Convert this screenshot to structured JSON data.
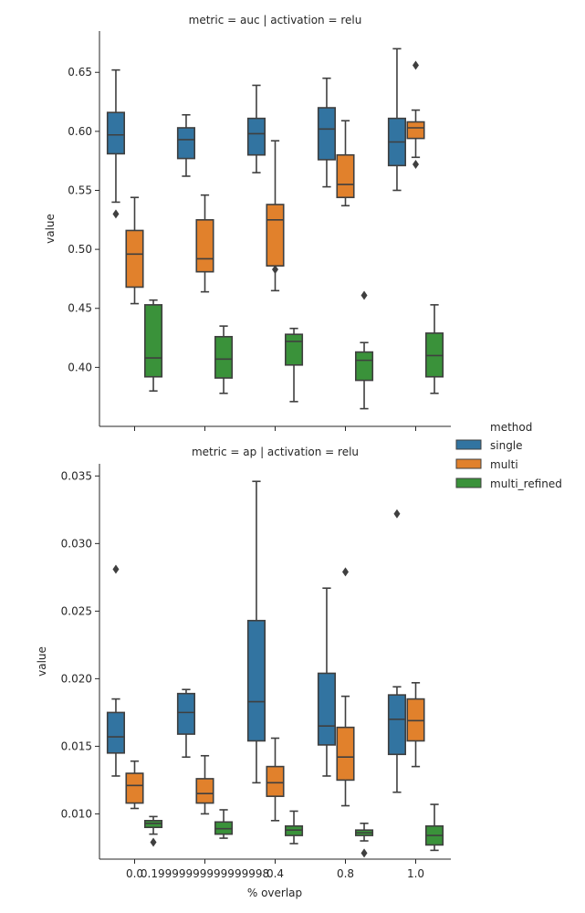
{
  "legend": {
    "title": "method",
    "entries": [
      {
        "name": "single",
        "color": "#3274a1"
      },
      {
        "name": "multi",
        "color": "#e1812c"
      },
      {
        "name": "multi_refined",
        "color": "#3a923a"
      }
    ]
  },
  "x_axis_label": "% overlap",
  "chart_data": [
    {
      "type": "box",
      "title": "metric = auc | activation = relu",
      "xlabel": "",
      "ylabel": "value",
      "ylim": [
        0.35,
        0.685
      ],
      "yticks": [
        0.4,
        0.45,
        0.5,
        0.55,
        0.6,
        0.65
      ],
      "ytick_labels": [
        "0.40",
        "0.45",
        "0.50",
        "0.55",
        "0.60",
        "0.65"
      ],
      "categories": [
        "0.0",
        "0.19999999999999998",
        "0.4",
        "0.8",
        "1.0"
      ],
      "show_xtick_labels": false,
      "series": [
        {
          "name": "single",
          "color": "#3274a1",
          "boxes": [
            {
              "whislo": 0.54,
              "q1": 0.581,
              "med": 0.597,
              "q3": 0.616,
              "whishi": 0.652,
              "fliers": [
                0.53
              ]
            },
            {
              "whislo": 0.562,
              "q1": 0.577,
              "med": 0.593,
              "q3": 0.603,
              "whishi": 0.614,
              "fliers": []
            },
            {
              "whislo": 0.565,
              "q1": 0.58,
              "med": 0.598,
              "q3": 0.611,
              "whishi": 0.639,
              "fliers": []
            },
            {
              "whislo": 0.553,
              "q1": 0.576,
              "med": 0.602,
              "q3": 0.62,
              "whishi": 0.645,
              "fliers": []
            },
            {
              "whislo": 0.55,
              "q1": 0.571,
              "med": 0.591,
              "q3": 0.611,
              "whishi": 0.67,
              "fliers": []
            }
          ]
        },
        {
          "name": "multi",
          "color": "#e1812c",
          "boxes": [
            {
              "whislo": 0.454,
              "q1": 0.468,
              "med": 0.496,
              "q3": 0.516,
              "whishi": 0.544,
              "fliers": []
            },
            {
              "whislo": 0.464,
              "q1": 0.481,
              "med": 0.492,
              "q3": 0.525,
              "whishi": 0.546,
              "fliers": []
            },
            {
              "whislo": 0.465,
              "q1": 0.486,
              "med": 0.525,
              "q3": 0.538,
              "whishi": 0.592,
              "fliers": [
                0.483
              ]
            },
            {
              "whislo": 0.537,
              "q1": 0.544,
              "med": 0.555,
              "q3": 0.58,
              "whishi": 0.609,
              "fliers": []
            },
            {
              "whislo": 0.578,
              "q1": 0.594,
              "med": 0.603,
              "q3": 0.608,
              "whishi": 0.618,
              "fliers": [
                0.656,
                0.572
              ]
            }
          ]
        },
        {
          "name": "multi_refined",
          "color": "#3a923a",
          "boxes": [
            {
              "whislo": 0.38,
              "q1": 0.392,
              "med": 0.408,
              "q3": 0.453,
              "whishi": 0.457,
              "fliers": []
            },
            {
              "whislo": 0.378,
              "q1": 0.391,
              "med": 0.407,
              "q3": 0.426,
              "whishi": 0.435,
              "fliers": []
            },
            {
              "whislo": 0.371,
              "q1": 0.402,
              "med": 0.422,
              "q3": 0.428,
              "whishi": 0.433,
              "fliers": []
            },
            {
              "whislo": 0.365,
              "q1": 0.389,
              "med": 0.406,
              "q3": 0.413,
              "whishi": 0.421,
              "fliers": [
                0.461
              ]
            },
            {
              "whislo": 0.378,
              "q1": 0.392,
              "med": 0.41,
              "q3": 0.429,
              "whishi": 0.453,
              "fliers": []
            }
          ]
        }
      ]
    },
    {
      "type": "box",
      "title": "metric = ap | activation = relu",
      "xlabel": "% overlap",
      "ylabel": "value",
      "ylim": [
        0.00665,
        0.0359
      ],
      "yticks": [
        0.01,
        0.015,
        0.02,
        0.025,
        0.03,
        0.035
      ],
      "ytick_labels": [
        "0.010",
        "0.015",
        "0.020",
        "0.025",
        "0.030",
        "0.035"
      ],
      "categories": [
        "0.0",
        "0.19999999999999998",
        "0.4",
        "0.8",
        "1.0"
      ],
      "show_xtick_labels": true,
      "series": [
        {
          "name": "single",
          "color": "#3274a1",
          "boxes": [
            {
              "whislo": 0.0128,
              "q1": 0.0145,
              "med": 0.0157,
              "q3": 0.0175,
              "whishi": 0.0185,
              "fliers": [
                0.0281
              ]
            },
            {
              "whislo": 0.0142,
              "q1": 0.0159,
              "med": 0.0175,
              "q3": 0.0189,
              "whishi": 0.0192,
              "fliers": []
            },
            {
              "whislo": 0.0123,
              "q1": 0.0154,
              "med": 0.0183,
              "q3": 0.0243,
              "whishi": 0.0346,
              "fliers": []
            },
            {
              "whislo": 0.0128,
              "q1": 0.0151,
              "med": 0.0165,
              "q3": 0.0204,
              "whishi": 0.0267,
              "fliers": []
            },
            {
              "whislo": 0.0116,
              "q1": 0.0144,
              "med": 0.017,
              "q3": 0.0188,
              "whishi": 0.0194,
              "fliers": [
                0.0322
              ]
            }
          ]
        },
        {
          "name": "multi",
          "color": "#e1812c",
          "boxes": [
            {
              "whislo": 0.0104,
              "q1": 0.0108,
              "med": 0.0121,
              "q3": 0.013,
              "whishi": 0.0139,
              "fliers": []
            },
            {
              "whislo": 0.01,
              "q1": 0.0108,
              "med": 0.0115,
              "q3": 0.0126,
              "whishi": 0.0143,
              "fliers": []
            },
            {
              "whislo": 0.0095,
              "q1": 0.0113,
              "med": 0.0123,
              "q3": 0.0135,
              "whishi": 0.0156,
              "fliers": []
            },
            {
              "whislo": 0.0106,
              "q1": 0.0125,
              "med": 0.0142,
              "q3": 0.0164,
              "whishi": 0.0187,
              "fliers": [
                0.0279
              ]
            },
            {
              "whislo": 0.0135,
              "q1": 0.0154,
              "med": 0.0169,
              "q3": 0.0185,
              "whishi": 0.0197,
              "fliers": []
            }
          ]
        },
        {
          "name": "multi_refined",
          "color": "#3a923a",
          "boxes": [
            {
              "whislo": 0.0085,
              "q1": 0.009,
              "med": 0.0093,
              "q3": 0.0095,
              "whishi": 0.0098,
              "fliers": [
                0.0079
              ]
            },
            {
              "whislo": 0.0082,
              "q1": 0.0085,
              "med": 0.0089,
              "q3": 0.0094,
              "whishi": 0.0103,
              "fliers": []
            },
            {
              "whislo": 0.0078,
              "q1": 0.0084,
              "med": 0.0088,
              "q3": 0.0091,
              "whishi": 0.0102,
              "fliers": []
            },
            {
              "whislo": 0.008,
              "q1": 0.0084,
              "med": 0.0086,
              "q3": 0.0088,
              "whishi": 0.0093,
              "fliers": [
                0.0071
              ]
            },
            {
              "whislo": 0.0073,
              "q1": 0.0077,
              "med": 0.0084,
              "q3": 0.0091,
              "whishi": 0.0107,
              "fliers": []
            }
          ]
        }
      ]
    }
  ]
}
